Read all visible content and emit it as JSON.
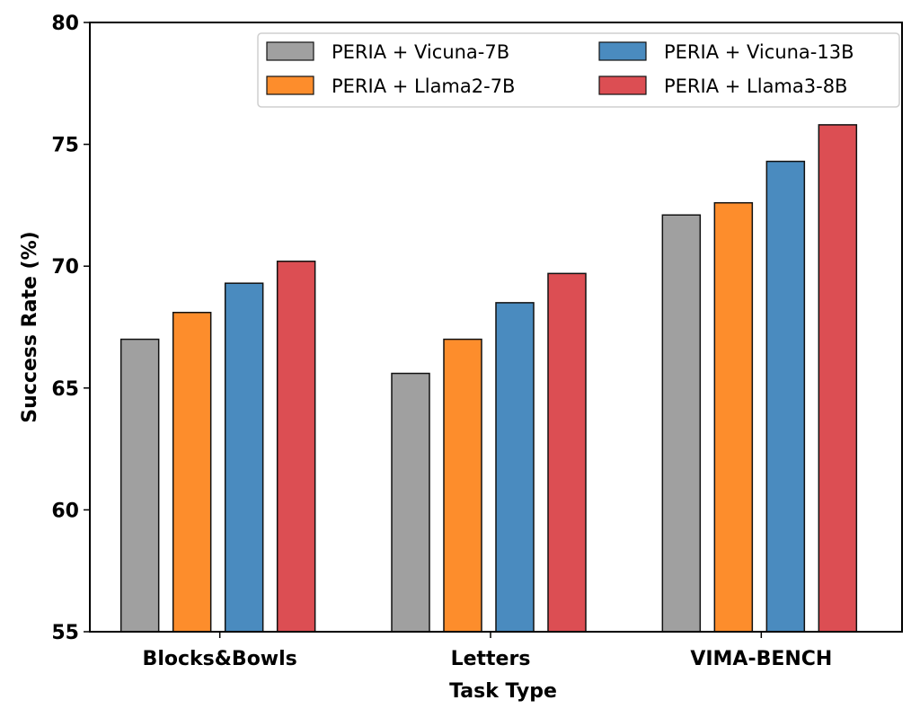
{
  "chart_data": {
    "type": "bar",
    "title": "",
    "xlabel": "Task Type",
    "ylabel": "Success Rate (%)",
    "ylim": [
      55,
      80
    ],
    "yticks": [
      "55",
      "60",
      "65",
      "70",
      "75",
      "80"
    ],
    "categories": [
      "Blocks&Bowls",
      "Letters",
      "VIMA-BENCH"
    ],
    "series": [
      {
        "name": "PERIA + Vicuna-7B",
        "color": "#a0a0a0",
        "values": [
          67.0,
          65.6,
          72.1
        ]
      },
      {
        "name": "PERIA + Llama2-7B",
        "color": "#fd8d2c",
        "values": [
          68.1,
          67.0,
          72.6
        ]
      },
      {
        "name": "PERIA + Vicuna-13B",
        "color": "#4a8bbf",
        "values": [
          69.3,
          68.5,
          74.3
        ]
      },
      {
        "name": "PERIA + Llama3-8B",
        "color": "#dc4e53",
        "values": [
          70.2,
          69.7,
          75.8
        ]
      }
    ],
    "legend_position": "top-right",
    "legend_columns": 2,
    "grid": false
  }
}
